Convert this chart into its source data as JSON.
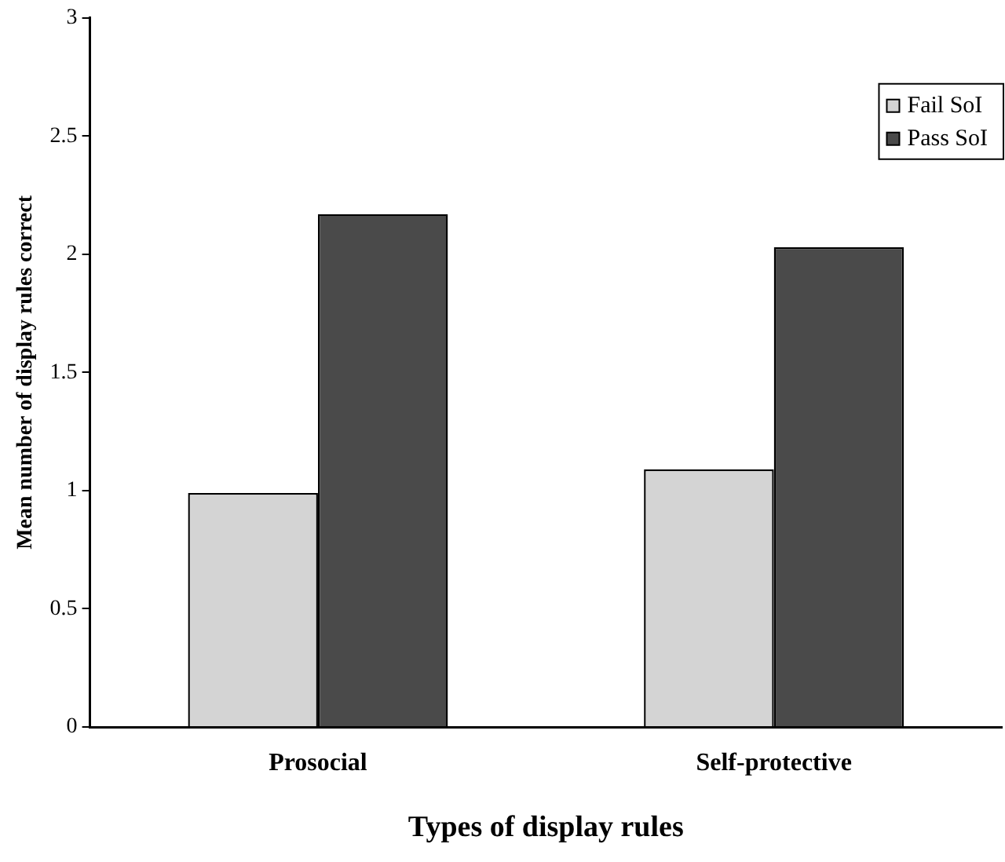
{
  "chart_data": {
    "type": "bar",
    "xlabel": "Types of display rules",
    "ylabel": "Mean number of display rules correct",
    "categories": [
      "Prosocial",
      "Self-protective"
    ],
    "series": [
      {
        "name": "Fail SoI",
        "color": "#d4d4d4",
        "values": [
          0.99,
          1.09
        ]
      },
      {
        "name": "Pass SoI",
        "color": "#4a4a4a",
        "values": [
          2.17,
          2.03
        ]
      }
    ],
    "ylim": [
      0,
      3
    ],
    "yticks": [
      0,
      0.5,
      1,
      1.5,
      2,
      2.5,
      3
    ],
    "grid": false,
    "legend": "top right"
  }
}
